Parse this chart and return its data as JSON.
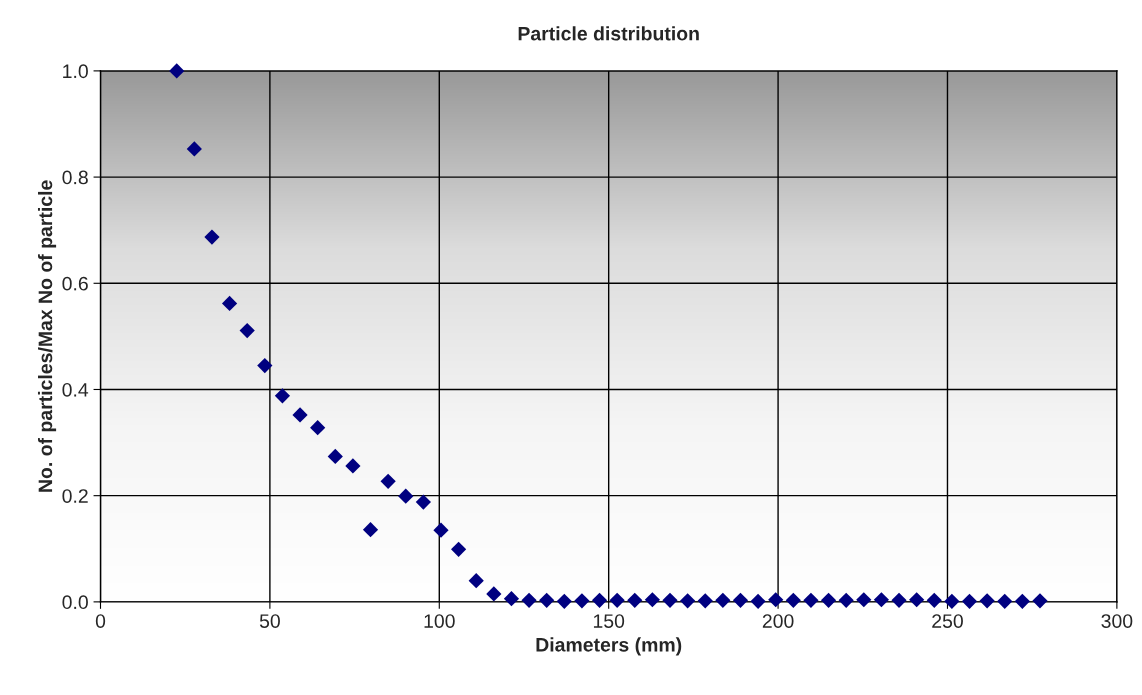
{
  "chart_data": {
    "type": "scatter",
    "title": "Particle distribution",
    "xlabel": "Diameters (mm)",
    "ylabel": "No. of particles/Max No of particle",
    "x": [
      22.5,
      27.7,
      32.9,
      38.1,
      43.3,
      48.5,
      53.7,
      58.9,
      64.1,
      69.3,
      74.5,
      79.7,
      84.9,
      90.1,
      95.3,
      100.5,
      105.7,
      110.9,
      116.1,
      121.3,
      126.5,
      131.7,
      136.9,
      142.1,
      147.3,
      152.5,
      157.7,
      162.9,
      168.1,
      173.3,
      178.5,
      183.7,
      188.9,
      194.1,
      199.3,
      204.5,
      209.7,
      214.9,
      220.1,
      225.3,
      230.5,
      235.7,
      240.9,
      246.1,
      251.3,
      256.5,
      261.7,
      266.9,
      272.1,
      277.3
    ],
    "series": [
      {
        "color": "#000080",
        "marker": "diamond",
        "values": [
          1.0,
          0.853,
          0.687,
          0.562,
          0.511,
          0.445,
          0.388,
          0.352,
          0.328,
          0.274,
          0.256,
          0.136,
          0.227,
          0.199,
          0.188,
          0.135,
          0.099,
          0.04,
          0.015,
          0.006,
          0.003,
          0.003,
          0.001,
          0.002,
          0.003,
          0.003,
          0.003,
          0.004,
          0.003,
          0.002,
          0.002,
          0.003,
          0.003,
          0.001,
          0.004,
          0.003,
          0.003,
          0.003,
          0.003,
          0.004,
          0.004,
          0.003,
          0.004,
          0.003,
          0.001,
          0.001,
          0.002,
          0.001,
          0.001,
          0.002
        ]
      }
    ],
    "xlim": [
      0,
      300
    ],
    "xticks": [
      0,
      50,
      100,
      150,
      200,
      250,
      300
    ],
    "ylim": [
      0,
      1.0
    ],
    "yticks": [
      {
        "value": 0,
        "label": "0.0"
      },
      {
        "value": 0.2,
        "label": "0.2"
      },
      {
        "value": 0.4,
        "label": "0.4"
      },
      {
        "value": 0.6,
        "label": "0.6"
      },
      {
        "value": 0.8,
        "label": "0.8"
      },
      {
        "value": 1.0,
        "label": "1.0"
      }
    ],
    "grid": true,
    "legend": false
  }
}
